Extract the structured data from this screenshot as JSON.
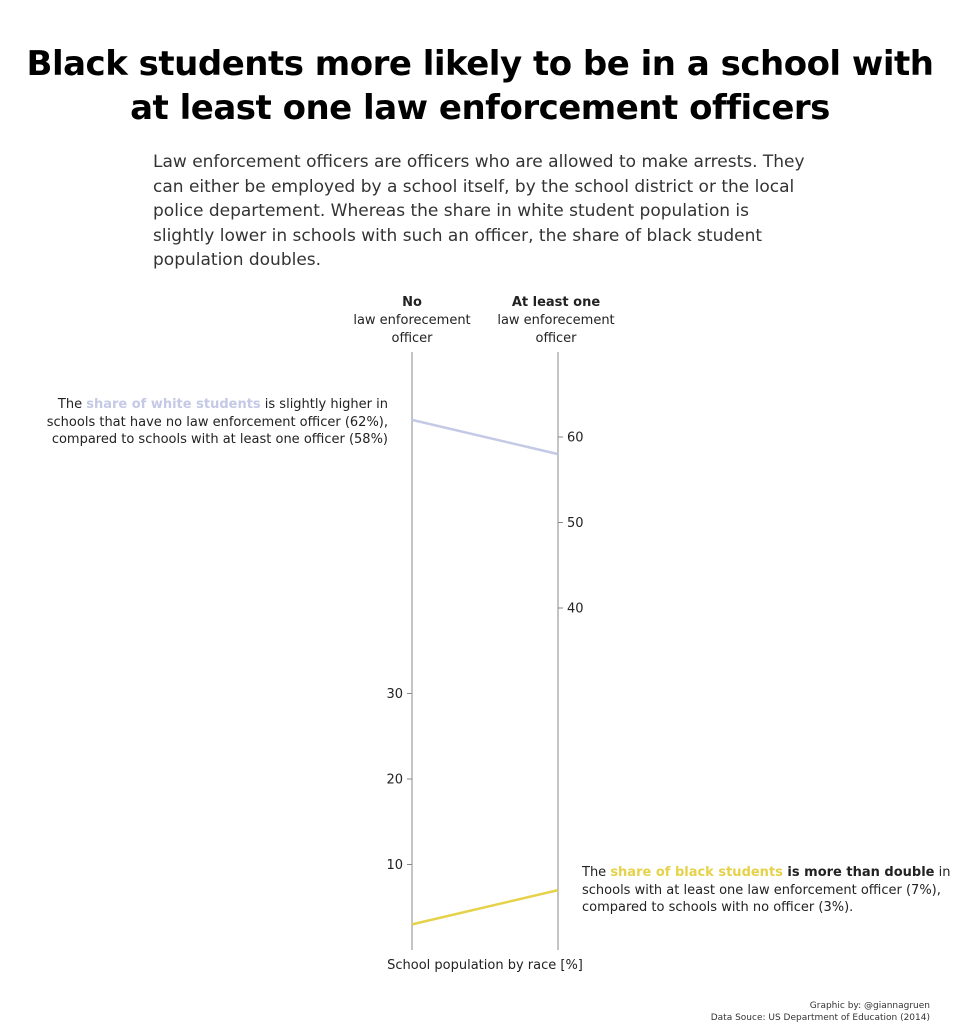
{
  "title_line1": "Black students more likely to be in a school with",
  "title_line2": "at least one law enforcement officers",
  "subtitle": "Law enforcement officers are officers who are allowed to make arrests. They can either be employed by a school itself, by the school district or the local police departement. Whereas the share in white student population is slightly lower in schools with such an officer, the share of black student population doubles.",
  "annotation_white": {
    "prefix": "The ",
    "highlight": "share of white students",
    "rest": " is slightly higher in schools that have no law enforcement officer (62%), compared to schools with at least one officer (58%)",
    "color": "#c4c9e6"
  },
  "annotation_black": {
    "prefix": "The ",
    "highlight": "share of black students",
    "bold_rest": " is more than double",
    "rest": " in schools with at least one law enforcement officer (7%), compared to schools with no officer (3%).",
    "color": "#e5d24a"
  },
  "credits": {
    "line1": "Graphic by: @giannagruen",
    "line2": "Data Souce: US Department of Education (2014)"
  },
  "chart_data": {
    "type": "line",
    "categories": [
      {
        "bold": "No",
        "line2": "law enforecement",
        "line3": "officer"
      },
      {
        "bold": "At least one",
        "line2": "law enforecement",
        "line3": "officer"
      }
    ],
    "xlabel": "School population by race [%]",
    "left_axis_ticks": [
      10,
      20,
      30
    ],
    "right_axis_ticks": [
      40,
      50,
      60
    ],
    "ylim": [
      0,
      69
    ],
    "series": [
      {
        "values": [
          62,
          58
        ],
        "color": "#c4c9e6"
      },
      {
        "values": [
          3,
          7
        ],
        "color": "#e5d24a"
      }
    ],
    "grid": false
  }
}
